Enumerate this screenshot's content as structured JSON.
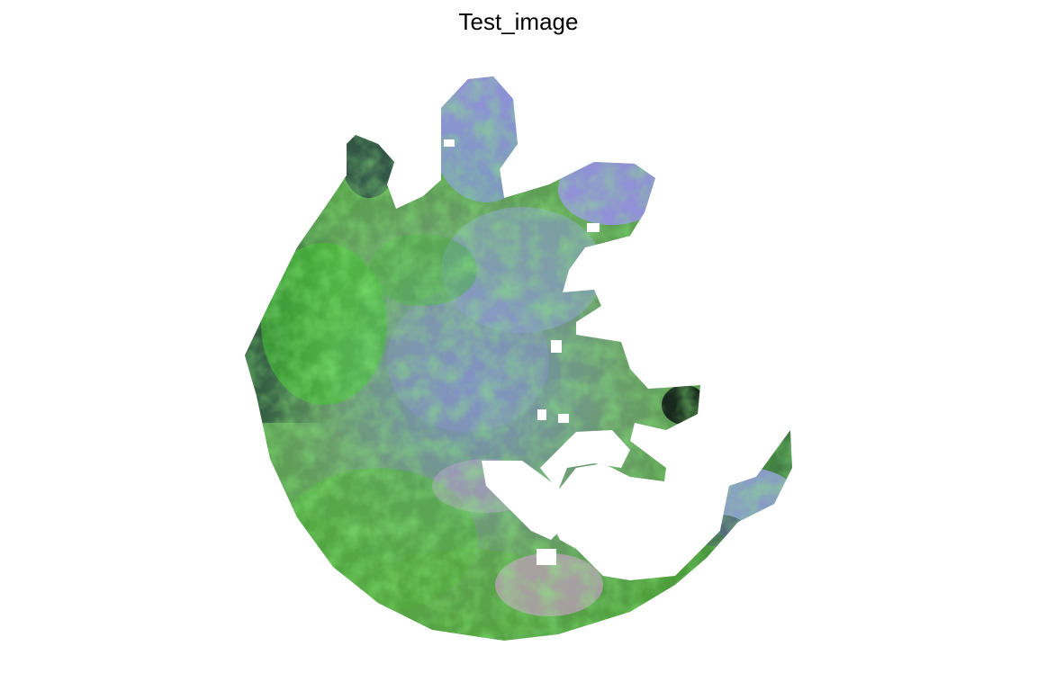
{
  "title": "Test_image",
  "palette": {
    "background": "#ffffff",
    "dark_teal": "#1f3a3a",
    "slate": "#3e5a5c",
    "bright_green": "#39d62a",
    "mid_green": "#4fa83a",
    "olive_green": "#6a9a48",
    "lavender": "#9b8ef0",
    "periwinkle": "#8fa0e6",
    "pink_haze": "#d9a0d8",
    "near_black": "#0c1414"
  }
}
